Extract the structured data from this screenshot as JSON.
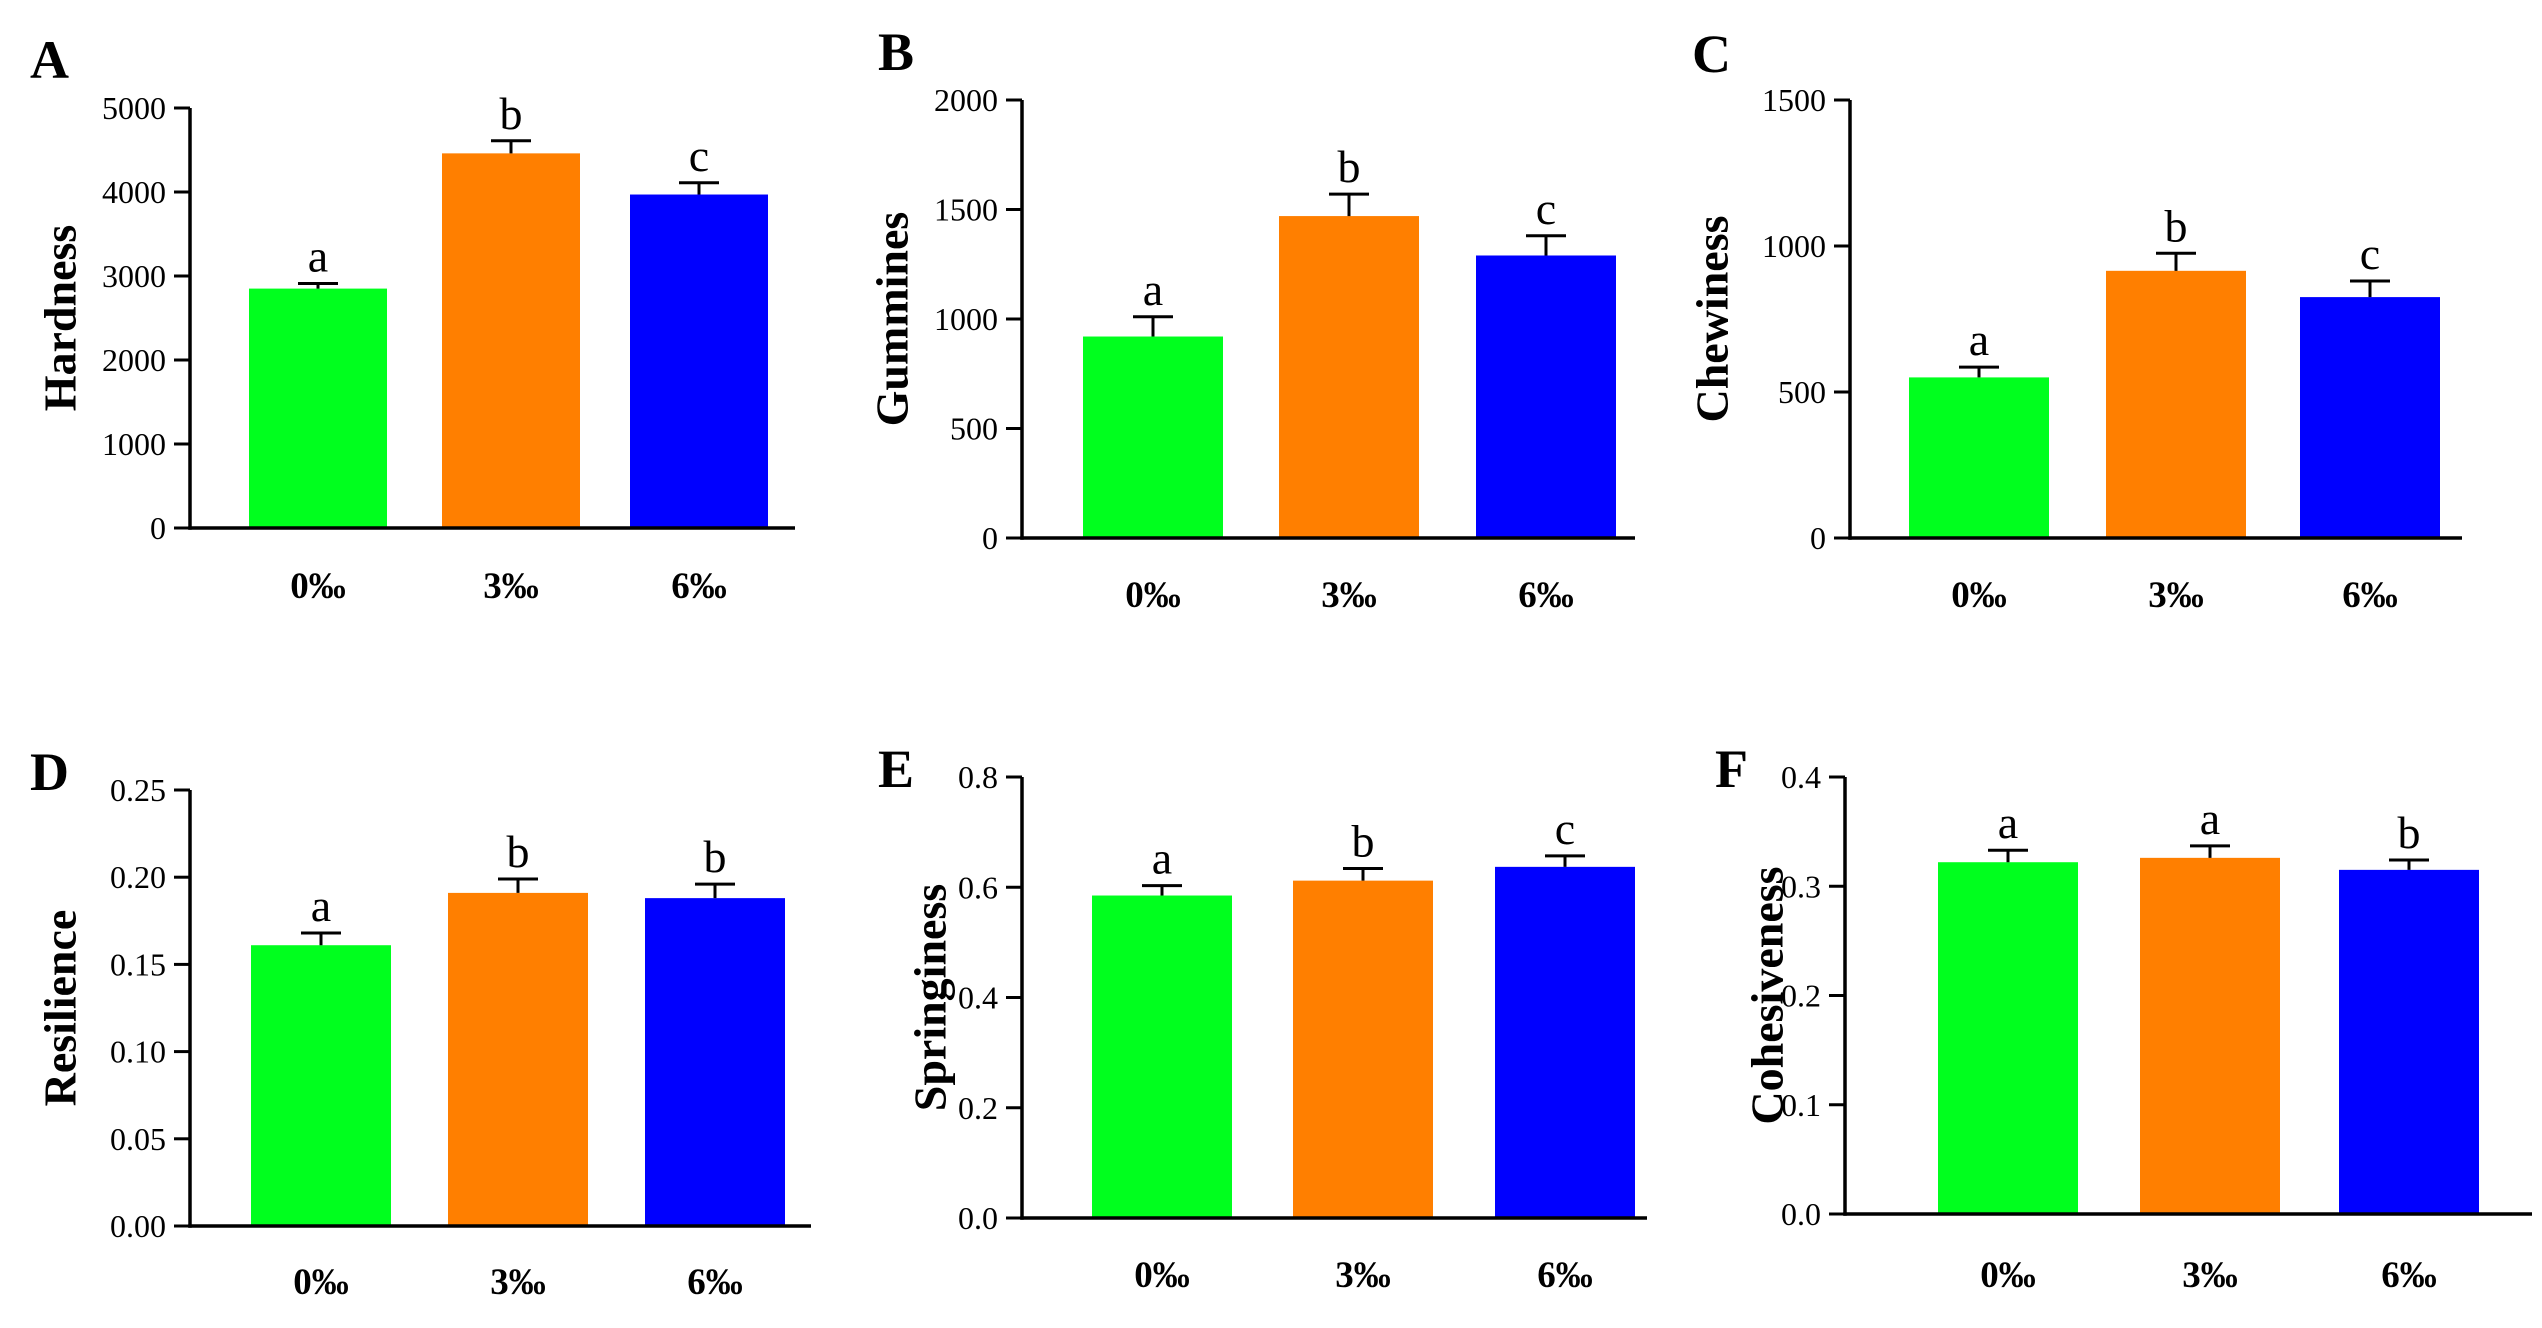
{
  "colors": {
    "0‰": "#00ff1e",
    "3‰": "#ff7f00",
    "6‰": "#0000ff",
    "axis": "#000000"
  },
  "chart_data": [
    {
      "panel": "A",
      "type": "bar",
      "ylabel": "Hardness",
      "categories": [
        "0‰",
        "3‰",
        "6‰"
      ],
      "values": [
        2850,
        4460,
        3970
      ],
      "errors": [
        60,
        150,
        140
      ],
      "letters": [
        "a",
        "b",
        "c"
      ],
      "ylim": [
        0,
        5000
      ],
      "yticks": [
        0,
        1000,
        2000,
        3000,
        4000,
        5000
      ],
      "ytick_labels": [
        "0",
        "1000",
        "2000",
        "3000",
        "4000",
        "5000"
      ]
    },
    {
      "panel": "B",
      "type": "bar",
      "ylabel": "Gummines",
      "categories": [
        "0‰",
        "3‰",
        "6‰"
      ],
      "values": [
        920,
        1470,
        1290
      ],
      "errors": [
        90,
        100,
        90
      ],
      "letters": [
        "a",
        "b",
        "c"
      ],
      "ylim": [
        0,
        2000
      ],
      "yticks": [
        0,
        500,
        1000,
        1500,
        2000
      ],
      "ytick_labels": [
        "0",
        "500",
        "1000",
        "1500",
        "2000"
      ]
    },
    {
      "panel": "C",
      "type": "bar",
      "ylabel": "Chewiness",
      "categories": [
        "0‰",
        "3‰",
        "6‰"
      ],
      "values": [
        550,
        915,
        825
      ],
      "errors": [
        35,
        60,
        55
      ],
      "letters": [
        "a",
        "b",
        "c"
      ],
      "ylim": [
        0,
        1500
      ],
      "yticks": [
        0,
        500,
        1000,
        1500
      ],
      "ytick_labels": [
        "0",
        "500",
        "1000",
        "1500"
      ]
    },
    {
      "panel": "D",
      "type": "bar",
      "ylabel": "Resilience",
      "categories": [
        "0‰",
        "3‰",
        "6‰"
      ],
      "values": [
        0.161,
        0.191,
        0.188
      ],
      "errors": [
        0.007,
        0.008,
        0.008
      ],
      "letters": [
        "a",
        "b",
        "b"
      ],
      "ylim": [
        0,
        0.25
      ],
      "yticks": [
        0,
        0.05,
        0.1,
        0.15,
        0.2,
        0.25
      ],
      "ytick_labels": [
        "0.00",
        "0.05",
        "0.10",
        "0.15",
        "0.20",
        "0.25"
      ]
    },
    {
      "panel": "E",
      "type": "bar",
      "ylabel": "Springiness",
      "categories": [
        "0‰",
        "3‰",
        "6‰"
      ],
      "values": [
        0.585,
        0.612,
        0.637
      ],
      "errors": [
        0.018,
        0.022,
        0.02
      ],
      "letters": [
        "a",
        "b",
        "c"
      ],
      "ylim": [
        0,
        0.8
      ],
      "yticks": [
        0,
        0.2,
        0.4,
        0.6,
        0.8
      ],
      "ytick_labels": [
        "0.0",
        "0.2",
        "0.4",
        "0.6",
        "0.8"
      ]
    },
    {
      "panel": "F",
      "type": "bar",
      "ylabel": "Cohesiveness",
      "categories": [
        "0‰",
        "3‰",
        "6‰"
      ],
      "values": [
        0.322,
        0.326,
        0.315
      ],
      "errors": [
        0.011,
        0.011,
        0.009
      ],
      "letters": [
        "a",
        "a",
        "b"
      ],
      "ylim": [
        0,
        0.4
      ],
      "yticks": [
        0,
        0.1,
        0.2,
        0.3,
        0.4
      ],
      "ytick_labels": [
        "0.0",
        "0.1",
        "0.2",
        "0.3",
        "0.4"
      ]
    }
  ]
}
